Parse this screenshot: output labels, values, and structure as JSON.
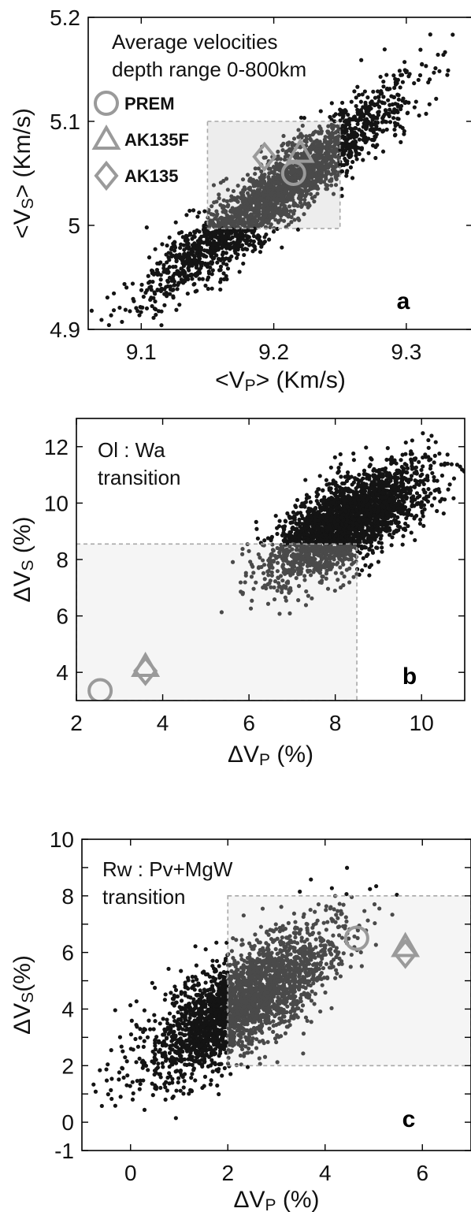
{
  "chart_data": [
    {
      "type": "scatter",
      "panel_label": "a",
      "annotation": [
        "Average velocities",
        "depth range 0-800km"
      ],
      "xlabel": {
        "pre": "<V",
        "sub": "P",
        "post": "> (Km/s)"
      },
      "ylabel": {
        "pre": "<V",
        "sub": "S",
        "post": "> (Km/s)"
      },
      "xlim": [
        9.06,
        9.35
      ],
      "ylim": [
        4.9,
        5.2
      ],
      "xticks": [
        "9.1",
        "9.2",
        "9.3"
      ],
      "yticks": [
        "4.9",
        "5",
        "5.1",
        "5.2"
      ],
      "cloud": {
        "center": [
          9.2,
          5.03
        ],
        "sd_along": 0.065,
        "sd_across": 0.012,
        "n": 2600,
        "seed": 11
      },
      "highlight_box": {
        "x": [
          9.15,
          9.25
        ],
        "y": [
          4.997,
          5.1
        ]
      },
      "legend_position": "upper-left",
      "legend": [
        {
          "marker": "circle",
          "label": "PREM"
        },
        {
          "marker": "triangle",
          "label": "AK135F"
        },
        {
          "marker": "diamond",
          "label": "AK135"
        }
      ],
      "points": [
        {
          "marker": "circle",
          "x": 9.215,
          "y": 5.05
        },
        {
          "marker": "triangle",
          "x": 9.22,
          "y": 5.07
        },
        {
          "marker": "diamond",
          "x": 9.193,
          "y": 5.066
        }
      ],
      "marker_color": "#9a9a9a",
      "cloud_color": "#141414",
      "inside_color": "#4a4a4a",
      "box_fill": "#ededed"
    },
    {
      "type": "scatter",
      "panel_label": "b",
      "annotation": [
        "Ol : Wa",
        "transition"
      ],
      "xlabel": {
        "pre": "ΔV",
        "sub": "P",
        "post": " (%)"
      },
      "ylabel": {
        "pre": "ΔV",
        "sub": "S",
        "post": " (%)"
      },
      "xlim": [
        2,
        11
      ],
      "ylim": [
        3,
        13
      ],
      "xticks": [
        "2",
        "4",
        "6",
        "8",
        "10"
      ],
      "yticks": [
        "4",
        "6",
        "8",
        "10",
        "12"
      ],
      "cloud": {
        "center": [
          8.25,
          9.3
        ],
        "sd_along": 1.15,
        "sd_across": 0.5,
        "n": 2600,
        "seed": 23
      },
      "highlight_box": {
        "x": [
          2,
          8.5
        ],
        "y": [
          3,
          8.55
        ]
      },
      "points": [
        {
          "marker": "circle",
          "x": 2.55,
          "y": 3.35
        },
        {
          "marker": "triangle",
          "x": 3.6,
          "y": 4.2
        },
        {
          "marker": "diamond",
          "x": 3.6,
          "y": 4.05
        }
      ],
      "marker_color": "#9a9a9a",
      "cloud_color": "#141414",
      "inside_color": "#4a4a4a",
      "box_fill": "#f5f5f5"
    },
    {
      "type": "scatter",
      "panel_label": "c",
      "annotation": [
        "Rw : Pv+MgW",
        "transition"
      ],
      "xlabel": {
        "pre": "ΔV",
        "sub": "P",
        "post": " (%)"
      },
      "ylabel": {
        "pre": "ΔV",
        "sub": "S",
        "post": "(%)"
      },
      "xlim": [
        -1,
        7
      ],
      "ylim": [
        -1,
        10
      ],
      "xticks": [
        "0",
        "2",
        "4",
        "6"
      ],
      "yticks": [
        "-1",
        "0",
        "1",
        "2",
        "3",
        "4",
        "5",
        "6",
        "7",
        "8",
        "9",
        "10"
      ],
      "ytick_labels": [
        "-1",
        "0",
        "",
        "2",
        "",
        "4",
        "",
        "6",
        "",
        "8",
        "",
        "10"
      ],
      "cloud": {
        "center": [
          2.3,
          4.25
        ],
        "sd_along": 1.3,
        "sd_across": 0.5,
        "n": 2600,
        "seed": 37
      },
      "highlight_box": {
        "x": [
          2,
          7
        ],
        "y": [
          2,
          8
        ]
      },
      "points": [
        {
          "marker": "circle",
          "x": 4.65,
          "y": 6.5
        },
        {
          "marker": "triangle",
          "x": 5.65,
          "y": 6.2
        },
        {
          "marker": "diamond",
          "x": 5.65,
          "y": 5.95
        }
      ],
      "marker_color": "#9a9a9a",
      "cloud_color": "#141414",
      "inside_color": "#4a4a4a",
      "box_fill": "#f5f5f5"
    }
  ]
}
